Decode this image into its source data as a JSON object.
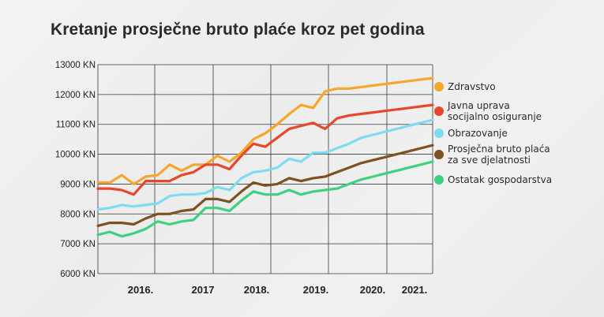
{
  "title": "Kretanje prosječne bruto plaće kroz pet godina",
  "chart_data": {
    "type": "line",
    "title": "Kretanje prosječne bruto plaće kroz pet godina",
    "xlabel": "",
    "ylabel": "",
    "ylim": [
      6000,
      13000
    ],
    "xlim": [
      0,
      28
    ],
    "yticks": [
      6000,
      7000,
      8000,
      9000,
      10000,
      11000,
      12000,
      13000
    ],
    "ytick_labels": [
      "6000 KN",
      "7000 KN",
      "8000 KN",
      "9000 KN",
      "10000 KN",
      "11000 KN",
      "12000 KN",
      "13000 KN"
    ],
    "x_labels": [
      {
        "x": 3.5,
        "label": "2016."
      },
      {
        "x": 9.5,
        "label": "2017"
      },
      {
        "x": 15.5,
        "label": "2018."
      },
      {
        "x": 21.5,
        "label": "2019."
      },
      {
        "x": 27.5,
        "label": "2020."
      },
      {
        "x": 33.5,
        "label": "2021."
      }
    ],
    "grid": true,
    "legend_position": "right",
    "series": [
      {
        "name": "Zdravstvo",
        "color": "#f5a62b",
        "x": [
          0,
          1,
          2,
          3,
          4,
          5,
          6,
          7,
          8,
          9,
          10,
          11,
          12,
          13,
          14,
          15,
          16,
          17,
          18,
          19,
          20,
          21,
          22,
          23,
          24,
          25,
          26,
          27,
          28
        ],
        "values": [
          9050,
          9050,
          9300,
          9000,
          9250,
          9300,
          9650,
          9450,
          9650,
          9650,
          9950,
          9750,
          10050,
          10500,
          10700,
          11000,
          11350,
          11650,
          11550,
          12100,
          12200,
          12200,
          12250,
          12300,
          12350,
          12400,
          12450,
          12500,
          12550
        ]
      },
      {
        "name": "Javna uprava\nsocijalno osiguranje",
        "color": "#e8472c",
        "x": [
          0,
          1,
          2,
          3,
          4,
          5,
          6,
          7,
          8,
          9,
          10,
          11,
          12,
          13,
          14,
          15,
          16,
          17,
          18,
          19,
          20,
          21,
          22,
          23,
          24,
          25,
          26,
          27,
          28
        ],
        "values": [
          8850,
          8850,
          8800,
          8650,
          9100,
          9100,
          9100,
          9300,
          9400,
          9650,
          9650,
          9500,
          9950,
          10350,
          10250,
          10550,
          10850,
          10950,
          11050,
          10850,
          11200,
          11300,
          11350,
          11400,
          11450,
          11500,
          11550,
          11600,
          11650
        ]
      },
      {
        "name": "Obrazovanje",
        "color": "#7ddcef",
        "x": [
          0,
          1,
          2,
          3,
          4,
          5,
          6,
          7,
          8,
          9,
          10,
          11,
          12,
          13,
          14,
          15,
          16,
          17,
          18,
          19,
          20,
          21,
          22,
          23,
          24,
          25,
          26,
          27,
          28
        ],
        "values": [
          8150,
          8200,
          8300,
          8250,
          8300,
          8350,
          8600,
          8650,
          8650,
          8700,
          8900,
          8800,
          9200,
          9400,
          9450,
          9550,
          9850,
          9750,
          10050,
          10050,
          10200,
          10350,
          10550,
          10650,
          10750,
          10850,
          10950,
          11050,
          11150
        ]
      },
      {
        "name": "Prosječna bruto plaća\nza sve djelatnosti",
        "color": "#7d5121",
        "x": [
          0,
          1,
          2,
          3,
          4,
          5,
          6,
          7,
          8,
          9,
          10,
          11,
          12,
          13,
          14,
          15,
          16,
          17,
          18,
          19,
          20,
          21,
          22,
          23,
          24,
          25,
          26,
          27,
          28
        ],
        "values": [
          7600,
          7700,
          7700,
          7650,
          7850,
          8000,
          8000,
          8100,
          8150,
          8500,
          8500,
          8400,
          8750,
          9050,
          8950,
          9000,
          9200,
          9100,
          9200,
          9250,
          9400,
          9550,
          9700,
          9800,
          9900,
          10000,
          10100,
          10200,
          10300
        ]
      },
      {
        "name": "Ostatak gospodarstva",
        "color": "#3fd17f",
        "x": [
          0,
          1,
          2,
          3,
          4,
          5,
          6,
          7,
          8,
          9,
          10,
          11,
          12,
          13,
          14,
          15,
          16,
          17,
          18,
          19,
          20,
          21,
          22,
          23,
          24,
          25,
          26,
          27,
          28
        ],
        "values": [
          7300,
          7400,
          7250,
          7350,
          7500,
          7750,
          7650,
          7750,
          7800,
          8200,
          8200,
          8100,
          8450,
          8750,
          8650,
          8650,
          8800,
          8650,
          8750,
          8800,
          8850,
          9000,
          9150,
          9250,
          9350,
          9450,
          9550,
          9650,
          9750
        ]
      }
    ]
  }
}
